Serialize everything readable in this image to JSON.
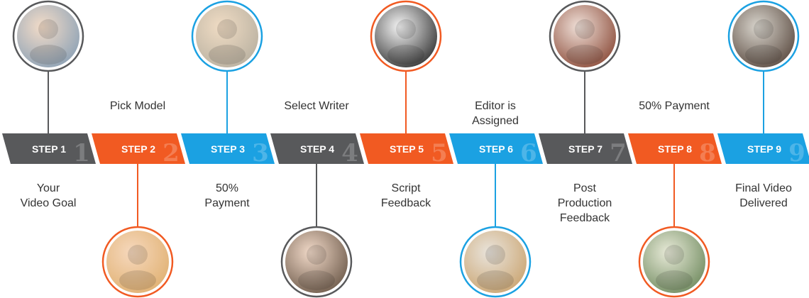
{
  "colors": {
    "gray": "#58595b",
    "orange": "#f15a22",
    "blue": "#1ba1e2"
  },
  "steps": [
    {
      "label": "STEP 1",
      "number": "1",
      "color": "gray",
      "photo_side": "top",
      "caption": [
        "Your",
        "Video Goal"
      ],
      "caption_side": "bottom",
      "photo": "man-portrait-photo"
    },
    {
      "label": "STEP 2",
      "number": "2",
      "color": "orange",
      "photo_side": "bottom",
      "caption": [
        "Pick Model"
      ],
      "caption_side": "top",
      "photo": "woman-model-photo"
    },
    {
      "label": "STEP 3",
      "number": "3",
      "color": "blue",
      "photo_side": "top",
      "caption": [
        "50%",
        "Payment"
      ],
      "caption_side": "bottom",
      "photo": "hand-money-photo"
    },
    {
      "label": "STEP 4",
      "number": "4",
      "color": "gray",
      "photo_side": "bottom",
      "caption": [
        "Select Writer"
      ],
      "caption_side": "top",
      "photo": "woman-writer-photo"
    },
    {
      "label": "STEP 5",
      "number": "5",
      "color": "orange",
      "photo_side": "top",
      "caption": [
        "Script",
        "Feedback"
      ],
      "caption_side": "bottom",
      "photo": "clapperboard-photo"
    },
    {
      "label": "STEP 6",
      "number": "6",
      "color": "blue",
      "photo_side": "bottom",
      "caption": [
        "Editor is",
        "Assigned"
      ],
      "caption_side": "top",
      "photo": "editor-photo"
    },
    {
      "label": "STEP 7",
      "number": "7",
      "color": "gray",
      "photo_side": "top",
      "caption": [
        "Post",
        "Production",
        "Feedback"
      ],
      "caption_side": "bottom",
      "photo": "couple-photo"
    },
    {
      "label": "STEP 8",
      "number": "8",
      "color": "orange",
      "photo_side": "bottom",
      "caption": [
        "50% Payment"
      ],
      "caption_side": "top",
      "photo": "dollar-bills-photo"
    },
    {
      "label": "STEP 9",
      "number": "9",
      "color": "blue",
      "photo_side": "top",
      "caption": [
        "Final Video",
        "Delivered"
      ],
      "caption_side": "bottom",
      "photo": "family-tv-photo"
    }
  ]
}
